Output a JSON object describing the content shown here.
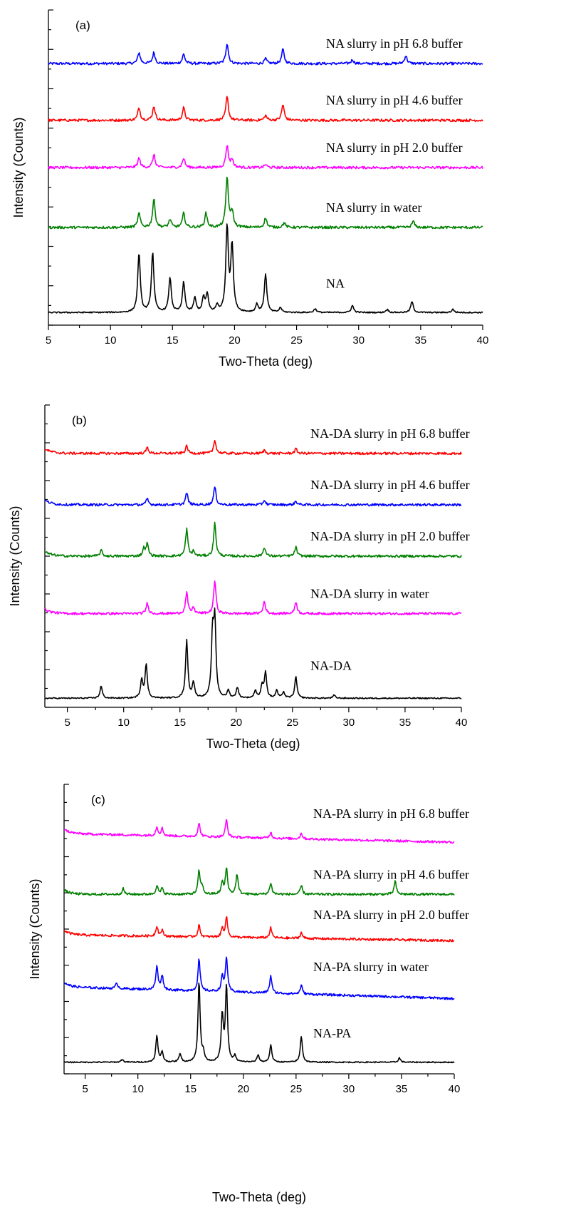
{
  "chart_data": [
    {
      "type": "line",
      "panel_label": "(a)",
      "xlabel": "Two-Theta (deg)",
      "ylabel": "Intensity (Counts)",
      "xlim": [
        5,
        40
      ],
      "xticks": [
        5,
        10,
        15,
        20,
        25,
        30,
        35,
        40
      ],
      "y_ticks_labeled": false,
      "grid": false,
      "legend": "inline labels at right",
      "series": [
        {
          "name": "NA slurry in pH 6.8 buffer",
          "color": "#0000ff",
          "baseline": 0.83,
          "peaks": [
            [
              12.3,
              0.035
            ],
            [
              13.5,
              0.035
            ],
            [
              15.9,
              0.03
            ],
            [
              19.4,
              0.065
            ],
            [
              22.5,
              0.015
            ],
            [
              23.9,
              0.045
            ],
            [
              29.5,
              0.012
            ],
            [
              33.8,
              0.025
            ]
          ]
        },
        {
          "name": "NA slurry in pH 4.6 buffer",
          "color": "#ff0000",
          "baseline": 0.65,
          "peaks": [
            [
              12.3,
              0.04
            ],
            [
              13.5,
              0.045
            ],
            [
              15.9,
              0.04
            ],
            [
              19.4,
              0.075
            ],
            [
              22.5,
              0.015
            ],
            [
              23.9,
              0.05
            ]
          ]
        },
        {
          "name": "NA slurry in pH 2.0 buffer",
          "color": "#ff00ff",
          "baseline": 0.5,
          "peaks": [
            [
              12.3,
              0.03
            ],
            [
              13.5,
              0.04
            ],
            [
              15.9,
              0.03
            ],
            [
              19.4,
              0.07
            ],
            [
              19.8,
              0.025
            ],
            [
              22.5,
              0.01
            ]
          ]
        },
        {
          "name": "NA slurry in water",
          "color": "#008000",
          "baseline": 0.31,
          "peaks": [
            [
              12.3,
              0.045
            ],
            [
              13.5,
              0.09
            ],
            [
              14.8,
              0.025
            ],
            [
              15.9,
              0.045
            ],
            [
              17.7,
              0.045
            ],
            [
              19.4,
              0.16
            ],
            [
              19.8,
              0.05
            ],
            [
              22.5,
              0.03
            ],
            [
              24.0,
              0.015
            ],
            [
              34.4,
              0.02
            ]
          ]
        },
        {
          "name": "NA",
          "color": "#000000",
          "baseline": 0.04,
          "peaks": [
            [
              12.3,
              0.19
            ],
            [
              13.4,
              0.19
            ],
            [
              14.8,
              0.11
            ],
            [
              15.9,
              0.095
            ],
            [
              16.8,
              0.045
            ],
            [
              17.5,
              0.045
            ],
            [
              17.8,
              0.055
            ],
            [
              18.6,
              0.02
            ],
            [
              19.4,
              0.27
            ],
            [
              19.8,
              0.21
            ],
            [
              21.8,
              0.025
            ],
            [
              22.5,
              0.12
            ],
            [
              23.7,
              0.015
            ],
            [
              26.5,
              0.012
            ],
            [
              29.5,
              0.022
            ],
            [
              32.3,
              0.01
            ],
            [
              34.3,
              0.035
            ],
            [
              37.6,
              0.01
            ]
          ]
        }
      ]
    },
    {
      "type": "line",
      "panel_label": "(b)",
      "xlabel": "Two-Theta (deg)",
      "ylabel": "Intensity (Counts)",
      "xlim": [
        3,
        40
      ],
      "xticks": [
        5,
        10,
        15,
        20,
        25,
        30,
        35,
        40
      ],
      "y_ticks_labeled": false,
      "grid": false,
      "legend": "inline labels at right",
      "series": [
        {
          "name": "NA-DA slurry in pH 6.8 buffer",
          "color": "#ff0000",
          "baseline": 0.84,
          "peaks": [
            [
              12.1,
              0.02
            ],
            [
              15.6,
              0.025
            ],
            [
              18.1,
              0.045
            ],
            [
              22.5,
              0.01
            ],
            [
              25.3,
              0.015
            ]
          ]
        },
        {
          "name": "NA-DA slurry in pH 4.6 buffer",
          "color": "#0000ff",
          "baseline": 0.67,
          "peaks": [
            [
              12.1,
              0.02
            ],
            [
              15.6,
              0.04
            ],
            [
              18.1,
              0.06
            ],
            [
              22.5,
              0.015
            ],
            [
              25.3,
              0.012
            ]
          ]
        },
        {
          "name": "NA-DA slurry in pH 2.0 buffer",
          "color": "#008000",
          "baseline": 0.5,
          "peaks": [
            [
              8.0,
              0.02
            ],
            [
              11.8,
              0.025
            ],
            [
              12.1,
              0.04
            ],
            [
              15.6,
              0.09
            ],
            [
              16.2,
              0.015
            ],
            [
              18.1,
              0.11
            ],
            [
              22.5,
              0.03
            ],
            [
              25.3,
              0.03
            ]
          ]
        },
        {
          "name": "NA-DA slurry in water",
          "color": "#ff00ff",
          "baseline": 0.31,
          "peaks": [
            [
              12.1,
              0.035
            ],
            [
              15.6,
              0.07
            ],
            [
              16.2,
              0.02
            ],
            [
              18.1,
              0.11
            ],
            [
              22.5,
              0.04
            ],
            [
              25.3,
              0.04
            ]
          ]
        },
        {
          "name": "NA-DA",
          "color": "#000000",
          "baseline": 0.03,
          "peaks": [
            [
              8.0,
              0.04
            ],
            [
              11.6,
              0.06
            ],
            [
              12.0,
              0.11
            ],
            [
              15.6,
              0.19
            ],
            [
              16.2,
              0.05
            ],
            [
              17.9,
              0.2
            ],
            [
              18.1,
              0.24
            ],
            [
              19.3,
              0.025
            ],
            [
              20.1,
              0.035
            ],
            [
              21.7,
              0.025
            ],
            [
              22.3,
              0.04
            ],
            [
              22.6,
              0.085
            ],
            [
              23.6,
              0.025
            ],
            [
              24.2,
              0.02
            ],
            [
              25.3,
              0.07
            ],
            [
              28.7,
              0.01
            ]
          ]
        }
      ]
    },
    {
      "type": "line",
      "panel_label": "(c)",
      "xlabel": "Two-Theta (deg)",
      "ylabel": "Intensity (Counts)",
      "xlim": [
        3,
        40
      ],
      "xticks": [
        5,
        10,
        15,
        20,
        25,
        30,
        35,
        40
      ],
      "y_ticks_labeled": false,
      "grid": false,
      "legend": "inline labels at right",
      "series": [
        {
          "name": "NA-PA slurry in pH 6.8 buffer",
          "color": "#ff00ff",
          "baseline": 0.83,
          "end": 0.8,
          "peaks": [
            [
              11.8,
              0.03
            ],
            [
              12.3,
              0.025
            ],
            [
              15.8,
              0.045
            ],
            [
              18.4,
              0.06
            ],
            [
              22.6,
              0.02
            ],
            [
              25.5,
              0.02
            ]
          ]
        },
        {
          "name": "NA-PA slurry in pH 4.6 buffer",
          "color": "#008000",
          "baseline": 0.62,
          "peaks": [
            [
              8.6,
              0.02
            ],
            [
              11.8,
              0.03
            ],
            [
              12.3,
              0.02
            ],
            [
              15.8,
              0.08
            ],
            [
              16.1,
              0.025
            ],
            [
              18.0,
              0.04
            ],
            [
              18.4,
              0.09
            ],
            [
              19.4,
              0.07
            ],
            [
              22.6,
              0.04
            ],
            [
              25.5,
              0.03
            ],
            [
              34.4,
              0.045
            ]
          ]
        },
        {
          "name": "NA-PA slurry in pH 2.0 buffer",
          "color": "#ff0000",
          "baseline": 0.48,
          "end": 0.46,
          "peaks": [
            [
              11.8,
              0.035
            ],
            [
              12.3,
              0.02
            ],
            [
              15.8,
              0.04
            ],
            [
              18.0,
              0.03
            ],
            [
              18.4,
              0.07
            ],
            [
              22.6,
              0.035
            ],
            [
              25.5,
              0.02
            ]
          ]
        },
        {
          "name": "NA-PA slurry in water",
          "color": "#0000ff",
          "baseline": 0.3,
          "end": 0.26,
          "peaks": [
            [
              8.0,
              0.02
            ],
            [
              11.8,
              0.08
            ],
            [
              12.3,
              0.05
            ],
            [
              15.8,
              0.11
            ],
            [
              18.0,
              0.05
            ],
            [
              18.4,
              0.12
            ],
            [
              22.6,
              0.06
            ],
            [
              25.5,
              0.03
            ]
          ]
        },
        {
          "name": "NA-PA",
          "color": "#000000",
          "baseline": 0.04,
          "peaks": [
            [
              8.5,
              0.01
            ],
            [
              11.8,
              0.09
            ],
            [
              12.3,
              0.035
            ],
            [
              14.0,
              0.03
            ],
            [
              15.8,
              0.28
            ],
            [
              16.2,
              0.03
            ],
            [
              18.0,
              0.16
            ],
            [
              18.4,
              0.26
            ],
            [
              19.2,
              0.02
            ],
            [
              21.4,
              0.025
            ],
            [
              22.6,
              0.06
            ],
            [
              25.5,
              0.09
            ],
            [
              34.8,
              0.015
            ]
          ]
        }
      ]
    }
  ]
}
